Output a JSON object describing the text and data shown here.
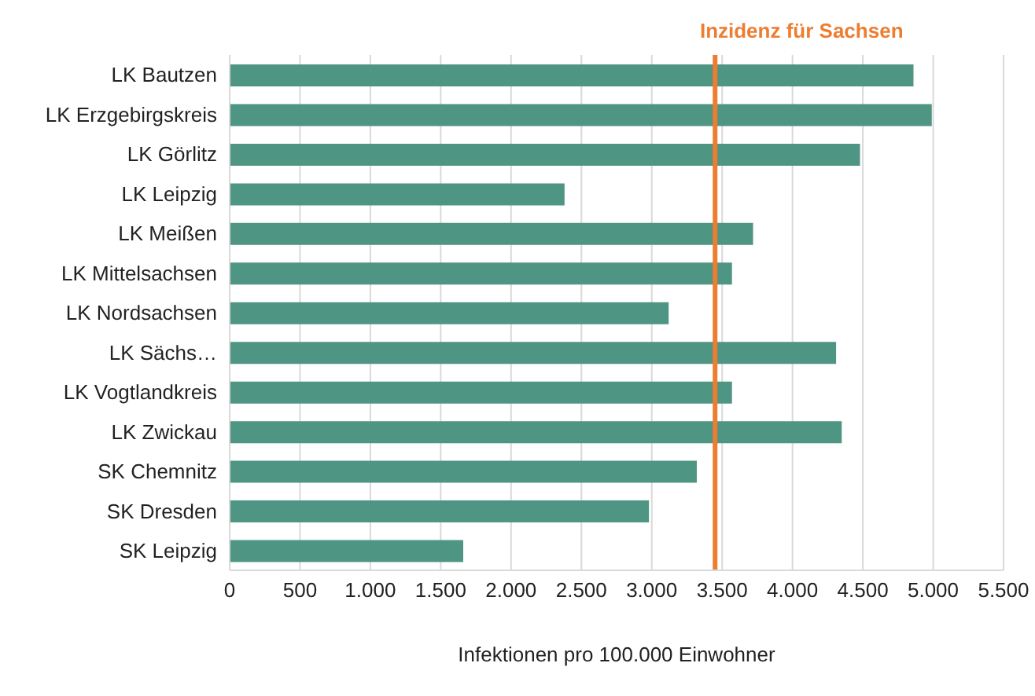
{
  "chart_data": {
    "type": "bar",
    "orientation": "horizontal",
    "categories": [
      "LK Bautzen",
      "LK Erzgebirgskreis",
      "LK Görlitz",
      "LK Leipzig",
      "LK Meißen",
      "LK Mittelsachsen",
      "LK Nordsachsen",
      "LK Sächs…",
      "LK Vogtlandkreis",
      "LK Zwickau",
      "SK Chemnitz",
      "SK Dresden",
      "SK Leipzig"
    ],
    "values": [
      4860,
      4990,
      4480,
      2380,
      3720,
      3570,
      3120,
      4310,
      3570,
      4350,
      3320,
      2980,
      1660
    ],
    "color": "#4e9584",
    "xlabel": "Infektionen  pro 100.000 Einwohner",
    "xlim": [
      0,
      5500
    ],
    "xticks": [
      {
        "value": 0,
        "label": "0"
      },
      {
        "value": 500,
        "label": "500"
      },
      {
        "value": 1000,
        "label": "1.000"
      },
      {
        "value": 1500,
        "label": "1.500"
      },
      {
        "value": 2000,
        "label": "2.000"
      },
      {
        "value": 2500,
        "label": "2.500"
      },
      {
        "value": 3000,
        "label": "3.000"
      },
      {
        "value": 3500,
        "label": "3.500"
      },
      {
        "value": 4000,
        "label": "4.000"
      },
      {
        "value": 4500,
        "label": "4.500"
      },
      {
        "value": 5000,
        "label": "5.000"
      },
      {
        "value": 5500,
        "label": "5.500"
      }
    ],
    "grid": "x",
    "ref_lines": [
      {
        "axis": "x",
        "value": 3450,
        "label": "Inzidenz für Sachsen",
        "color": "#ed7d31"
      }
    ]
  }
}
